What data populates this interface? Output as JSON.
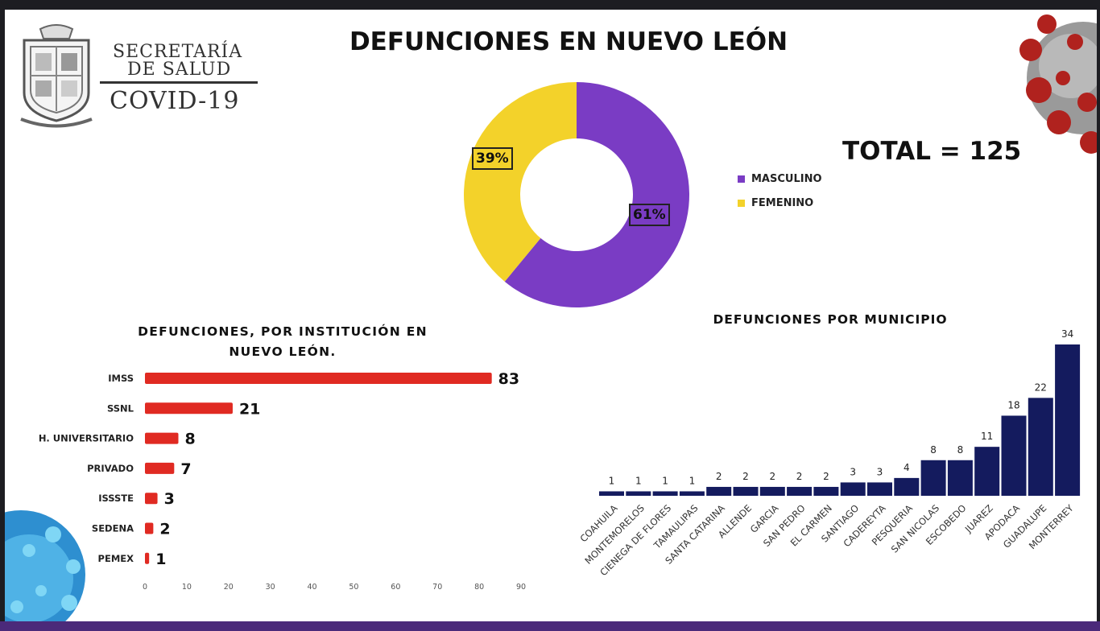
{
  "header": {
    "org_line1": "SECRETARÍA",
    "org_line2": "DE SALUD",
    "org_line3": "COVID-19",
    "title": "DEFUNCIONES EN NUEVO LEÓN",
    "total": "TOTAL = 125"
  },
  "colors": {
    "purple": "#7a3cc4",
    "yellow": "#f3d22a",
    "red": "#e02a22",
    "navy": "#141b5e"
  },
  "chart_data": [
    {
      "type": "pie",
      "variant": "donut",
      "title": "",
      "categories": [
        "MASCULINO",
        "FEMENINO"
      ],
      "values": [
        61,
        39
      ],
      "value_labels": [
        "61%",
        "39%"
      ],
      "colors": [
        "#7a3cc4",
        "#f3d22a"
      ],
      "legend_placement": "right"
    },
    {
      "type": "bar",
      "orientation": "horizontal",
      "title": "DEFUNCIONES, POR INSTITUCIÓN EN NUEVO LEÓN.",
      "categories": [
        "IMSS",
        "SSNL",
        "H. UNIVERSITARIO",
        "PRIVADO",
        "ISSSTE",
        "SEDENA",
        "PEMEX"
      ],
      "values": [
        83,
        21,
        8,
        7,
        3,
        2,
        1
      ],
      "xlim": [
        0,
        90
      ],
      "xticks": [
        0,
        10,
        20,
        30,
        40,
        50,
        60,
        70,
        80,
        90
      ],
      "color": "#e02a22",
      "grid": false
    },
    {
      "type": "bar",
      "orientation": "vertical",
      "title": "DEFUNCIONES POR MUNICIPIO",
      "categories": [
        "COAHUILA",
        "MONTEMORELOS",
        "CIENEGA DE FLORES",
        "TAMAULIPAS",
        "SANTA CATARINA",
        "ALLENDE",
        "GARCIA",
        "SAN PEDRO",
        "EL CARMEN",
        "SANTIAGO",
        "CADEREYTA",
        "PESQUERIA",
        "SAN NICOLAS",
        "ESCOBEDO",
        "JUAREZ",
        "APODACA",
        "GUADALUPE",
        "MONTERREY"
      ],
      "values": [
        1,
        1,
        1,
        1,
        2,
        2,
        2,
        2,
        2,
        3,
        3,
        4,
        8,
        8,
        11,
        18,
        22,
        34
      ],
      "color": "#141b5e",
      "grid": false
    }
  ]
}
